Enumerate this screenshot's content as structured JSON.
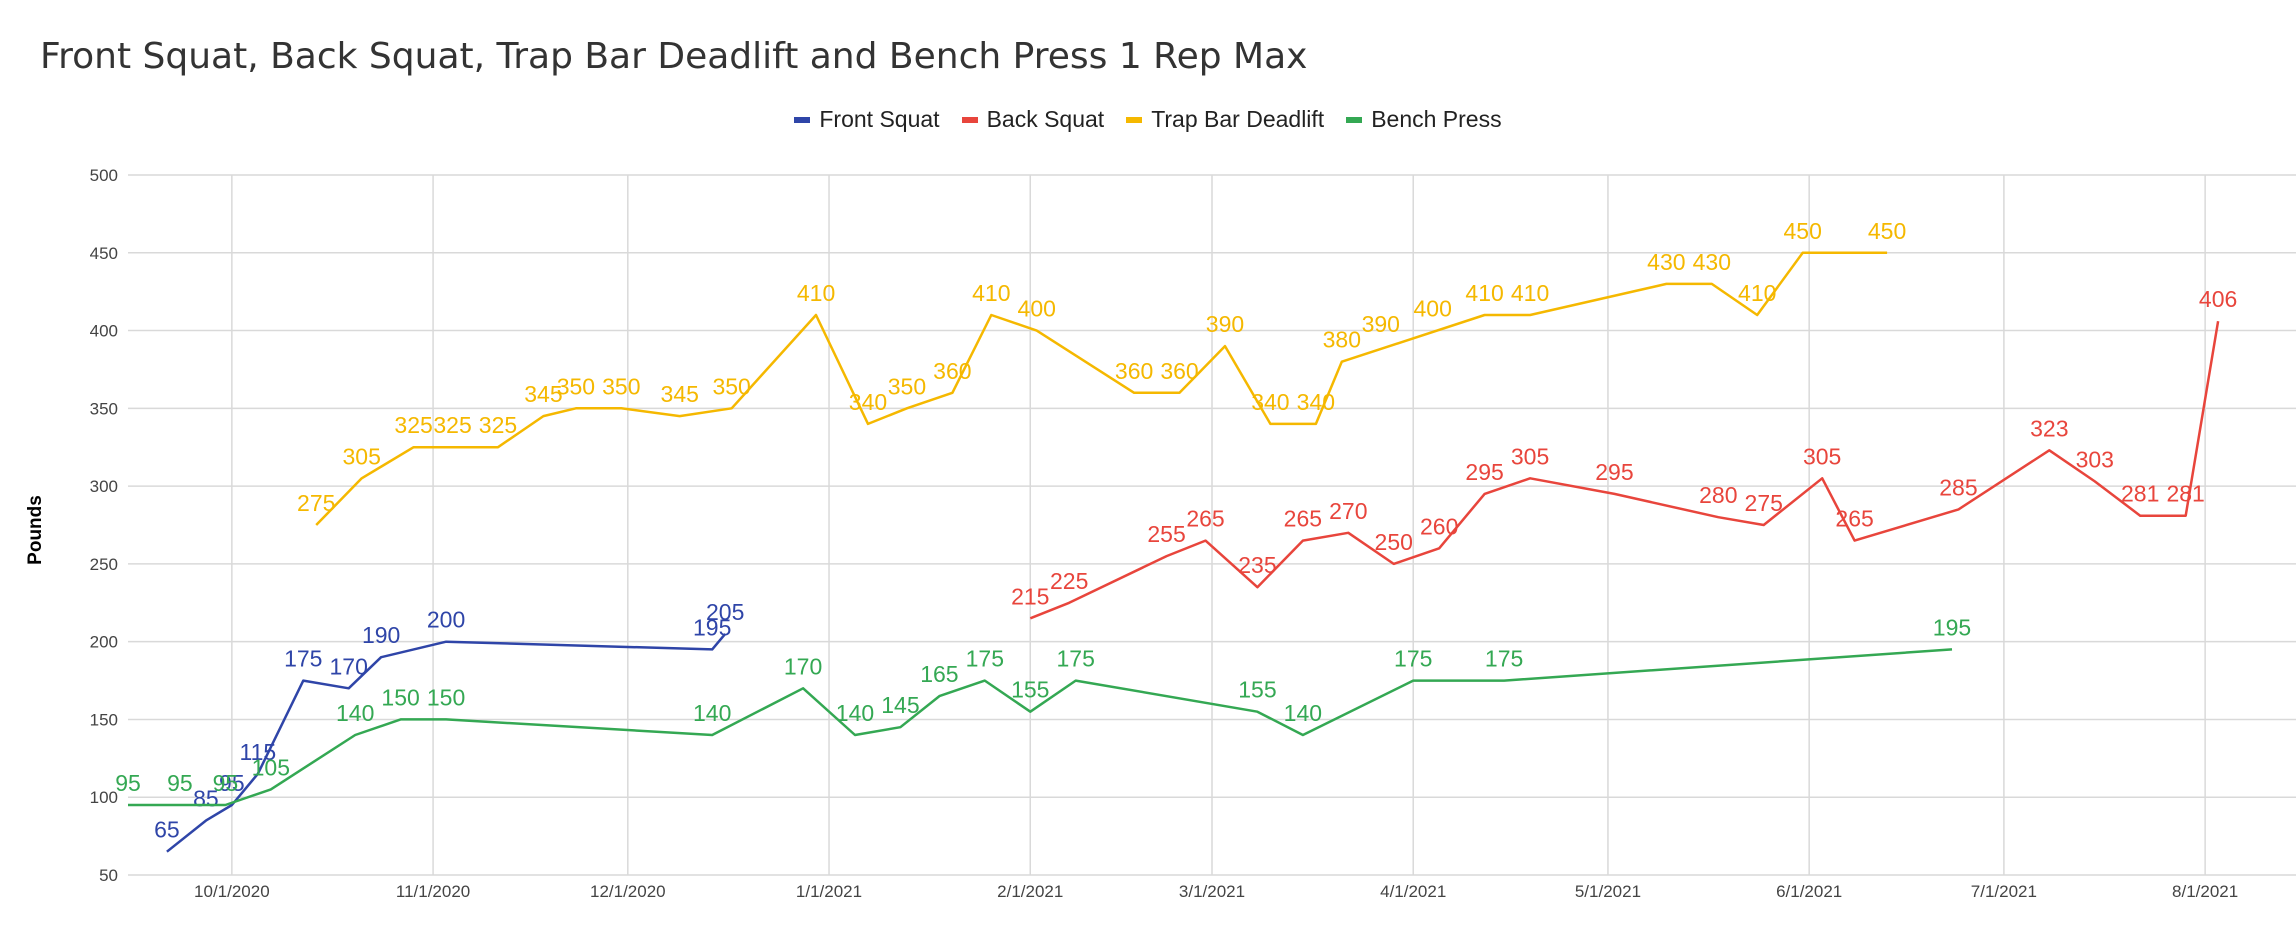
{
  "chart_data": {
    "type": "line",
    "title": "Front Squat, Back Squat, Trap Bar Deadlift and Bench Press 1 Rep Max",
    "xlabel": "",
    "ylabel": "Pounds",
    "ylim": [
      50,
      500
    ],
    "yticks": [
      50,
      100,
      150,
      200,
      250,
      300,
      350,
      400,
      450,
      500
    ],
    "xlim": [
      "2020-09-15",
      "2021-08-15"
    ],
    "xticks": [
      {
        "date": "2020-10-01",
        "label": "10/1/2020"
      },
      {
        "date": "2020-11-01",
        "label": "11/1/2020"
      },
      {
        "date": "2020-12-01",
        "label": "12/1/2020"
      },
      {
        "date": "2021-01-01",
        "label": "1/1/2021"
      },
      {
        "date": "2021-02-01",
        "label": "2/1/2021"
      },
      {
        "date": "2021-03-01",
        "label": "3/1/2021"
      },
      {
        "date": "2021-04-01",
        "label": "4/1/2021"
      },
      {
        "date": "2021-05-01",
        "label": "5/1/2021"
      },
      {
        "date": "2021-06-01",
        "label": "6/1/2021"
      },
      {
        "date": "2021-07-01",
        "label": "7/1/2021"
      },
      {
        "date": "2021-08-01",
        "label": "8/1/2021"
      }
    ],
    "grid": true,
    "legend_position": "top",
    "series": [
      {
        "name": "Front Squat",
        "color": "#2f45a8",
        "points": [
          {
            "x": "2020-09-21",
            "y": 65
          },
          {
            "x": "2020-09-27",
            "y": 85
          },
          {
            "x": "2020-10-01",
            "y": 95
          },
          {
            "x": "2020-10-05",
            "y": 115
          },
          {
            "x": "2020-10-12",
            "y": 175
          },
          {
            "x": "2020-10-19",
            "y": 170
          },
          {
            "x": "2020-10-24",
            "y": 190
          },
          {
            "x": "2020-11-03",
            "y": 200
          },
          {
            "x": "2020-12-14",
            "y": 195
          },
          {
            "x": "2020-12-16",
            "y": 205
          }
        ]
      },
      {
        "name": "Back Squat",
        "color": "#e8453c",
        "points": [
          {
            "x": "2021-02-01",
            "y": 215
          },
          {
            "x": "2021-02-07",
            "y": 225
          },
          {
            "x": "2021-02-22",
            "y": 255
          },
          {
            "x": "2021-02-28",
            "y": 265
          },
          {
            "x": "2021-03-08",
            "y": 235
          },
          {
            "x": "2021-03-15",
            "y": 265
          },
          {
            "x": "2021-03-22",
            "y": 270
          },
          {
            "x": "2021-03-29",
            "y": 250
          },
          {
            "x": "2021-04-05",
            "y": 260
          },
          {
            "x": "2021-04-12",
            "y": 295
          },
          {
            "x": "2021-04-19",
            "y": 305
          },
          {
            "x": "2021-05-02",
            "y": 295
          },
          {
            "x": "2021-05-18",
            "y": 280
          },
          {
            "x": "2021-05-25",
            "y": 275
          },
          {
            "x": "2021-06-03",
            "y": 305
          },
          {
            "x": "2021-06-08",
            "y": 265
          },
          {
            "x": "2021-06-24",
            "y": 285
          },
          {
            "x": "2021-07-08",
            "y": 323
          },
          {
            "x": "2021-07-15",
            "y": 303
          },
          {
            "x": "2021-07-22",
            "y": 281
          },
          {
            "x": "2021-07-29",
            "y": 281
          },
          {
            "x": "2021-08-03",
            "y": 406
          }
        ]
      },
      {
        "name": "Trap Bar Deadlift",
        "color": "#f5b800",
        "points": [
          {
            "x": "2020-10-14",
            "y": 275
          },
          {
            "x": "2020-10-21",
            "y": 305
          },
          {
            "x": "2020-10-29",
            "y": 325
          },
          {
            "x": "2020-11-04",
            "y": 325
          },
          {
            "x": "2020-11-11",
            "y": 325
          },
          {
            "x": "2020-11-18",
            "y": 345
          },
          {
            "x": "2020-11-23",
            "y": 350
          },
          {
            "x": "2020-11-30",
            "y": 350
          },
          {
            "x": "2020-12-09",
            "y": 345
          },
          {
            "x": "2020-12-17",
            "y": 350
          },
          {
            "x": "2020-12-30",
            "y": 410
          },
          {
            "x": "2021-01-07",
            "y": 340
          },
          {
            "x": "2021-01-13",
            "y": 350
          },
          {
            "x": "2021-01-20",
            "y": 360
          },
          {
            "x": "2021-01-26",
            "y": 410
          },
          {
            "x": "2021-02-02",
            "y": 400
          },
          {
            "x": "2021-02-17",
            "y": 360
          },
          {
            "x": "2021-02-24",
            "y": 360
          },
          {
            "x": "2021-03-03",
            "y": 390
          },
          {
            "x": "2021-03-10",
            "y": 340
          },
          {
            "x": "2021-03-17",
            "y": 340
          },
          {
            "x": "2021-03-21",
            "y": 380
          },
          {
            "x": "2021-04-12",
            "y": 410
          },
          {
            "x": "2021-04-19",
            "y": 410
          },
          {
            "x": "2021-05-10",
            "y": 430
          },
          {
            "x": "2021-05-17",
            "y": 430
          },
          {
            "x": "2021-05-24",
            "y": 410
          },
          {
            "x": "2021-05-31",
            "y": 450
          },
          {
            "x": "2021-06-13",
            "y": 450
          }
        ],
        "extra_labels": [
          {
            "x": "2021-03-27",
            "y": 390
          },
          {
            "x": "2021-04-04",
            "y": 400
          }
        ]
      },
      {
        "name": "Bench Press",
        "color": "#34a853",
        "points": [
          {
            "x": "2020-09-15",
            "y": 95
          },
          {
            "x": "2020-09-23",
            "y": 95
          },
          {
            "x": "2020-09-30",
            "y": 95
          },
          {
            "x": "2020-10-07",
            "y": 105
          },
          {
            "x": "2020-10-20",
            "y": 140
          },
          {
            "x": "2020-10-27",
            "y": 150
          },
          {
            "x": "2020-11-03",
            "y": 150
          },
          {
            "x": "2020-12-14",
            "y": 140
          },
          {
            "x": "2020-12-28",
            "y": 170
          },
          {
            "x": "2021-01-05",
            "y": 140
          },
          {
            "x": "2021-01-12",
            "y": 145
          },
          {
            "x": "2021-01-18",
            "y": 165
          },
          {
            "x": "2021-01-25",
            "y": 175
          },
          {
            "x": "2021-02-01",
            "y": 155
          },
          {
            "x": "2021-02-08",
            "y": 175
          },
          {
            "x": "2021-03-08",
            "y": 155
          },
          {
            "x": "2021-03-15",
            "y": 140
          },
          {
            "x": "2021-04-01",
            "y": 175
          },
          {
            "x": "2021-04-15",
            "y": 175
          },
          {
            "x": "2021-06-23",
            "y": 195
          }
        ]
      }
    ]
  }
}
